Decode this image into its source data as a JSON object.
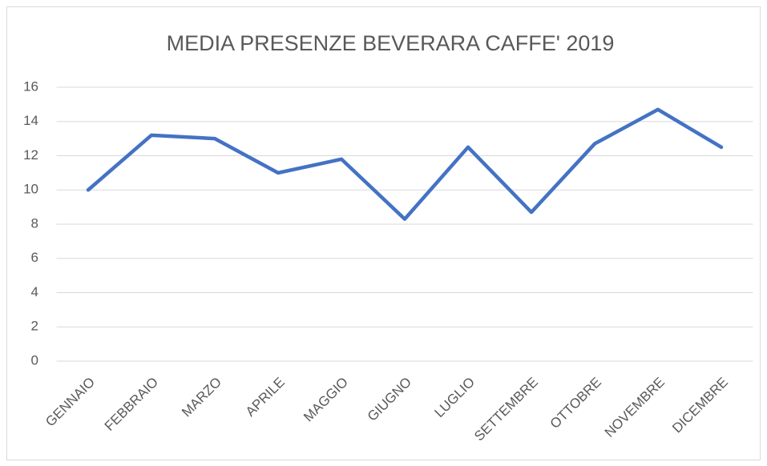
{
  "chart_data": {
    "type": "line",
    "title": "MEDIA PRESENZE BEVERARA CAFFE' 2019",
    "categories": [
      "GENNAIO",
      "FEBBRAIO",
      "MARZO",
      "APRILE",
      "MAGGIO",
      "GIUGNO",
      "LUGLIO",
      "SETTEMBRE",
      "OTTOBRE",
      "NOVEMBRE",
      "DICEMBRE"
    ],
    "series": [
      {
        "name": "MEDIA PRESENZE",
        "color": "#4472c4",
        "values": [
          10,
          13.2,
          13,
          11,
          11.8,
          8.3,
          12.5,
          8.7,
          12.7,
          14.7,
          12.5
        ]
      }
    ],
    "ylim": [
      0,
      16
    ],
    "yticks": [
      0,
      2,
      4,
      6,
      8,
      10,
      12,
      14,
      16
    ],
    "grid": true
  }
}
